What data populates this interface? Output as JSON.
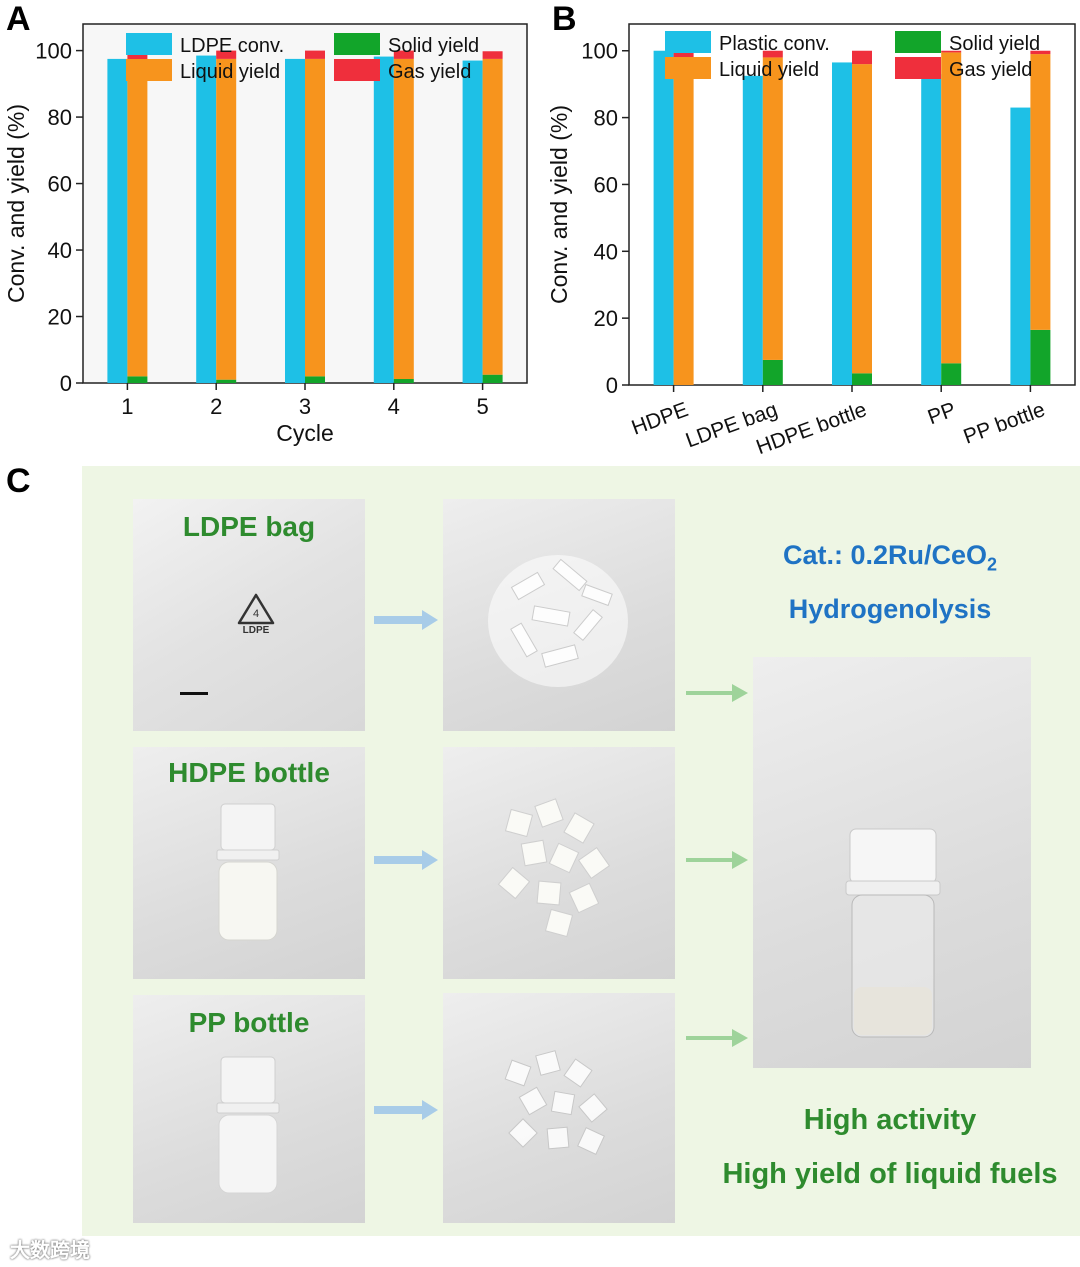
{
  "panels": {
    "a": "A",
    "b": "B",
    "c": "C"
  },
  "colors": {
    "conv": "#1ec0e6",
    "liquid": "#f7941d",
    "solid": "#12a52a",
    "gas": "#ef2f3c",
    "label_green": "#2e8b2e",
    "label_blue": "#1f73c4"
  },
  "chart_data": [
    {
      "type": "bar",
      "panel": "A",
      "xlabel": "Cycle",
      "ylabel": "Conv. and yield (%)",
      "ylim": [
        0,
        108
      ],
      "yticks": [
        0,
        20,
        40,
        60,
        80,
        100
      ],
      "categories": [
        "1",
        "2",
        "3",
        "4",
        "5"
      ],
      "legend_placement": "top",
      "series": [
        {
          "name": "LDPE conv.",
          "key": "conv",
          "values": [
            97.5,
            98.5,
            97.5,
            98.2,
            97.0
          ]
        },
        {
          "name": "Solid yield",
          "key": "solid",
          "values": [
            2.0,
            1.0,
            2.0,
            1.2,
            2.5
          ],
          "stack": "yield"
        },
        {
          "name": "Liquid yield",
          "key": "liquid",
          "values": [
            95.0,
            96.5,
            95.5,
            96.3,
            95.0
          ],
          "stack": "yield"
        },
        {
          "name": "Gas yield",
          "key": "gas",
          "values": [
            2.5,
            2.5,
            2.5,
            2.5,
            2.3
          ],
          "stack": "yield"
        }
      ]
    },
    {
      "type": "bar",
      "panel": "B",
      "ylabel": "Conv. and yield (%)",
      "ylim": [
        0,
        108
      ],
      "yticks": [
        0,
        20,
        40,
        60,
        80,
        100
      ],
      "categories": [
        "HDPE",
        "LDPE bag",
        "HDPE bottle",
        "PP",
        "PP bottle"
      ],
      "legend_placement": "top",
      "series": [
        {
          "name": "Plastic conv.",
          "key": "conv",
          "values": [
            100.0,
            92.5,
            96.5,
            93.0,
            83.0
          ]
        },
        {
          "name": "Solid yield",
          "key": "solid",
          "values": [
            0.0,
            7.5,
            3.5,
            6.5,
            16.5
          ],
          "stack": "yield"
        },
        {
          "name": "Liquid yield",
          "key": "liquid",
          "values": [
            92.5,
            90.5,
            92.5,
            93.0,
            82.5
          ],
          "stack": "yield"
        },
        {
          "name": "Gas yield",
          "key": "gas",
          "values": [
            7.5,
            2.0,
            4.0,
            0.5,
            1.0
          ],
          "stack": "yield"
        }
      ]
    }
  ],
  "panel_c": {
    "row1_label": "LDPE bag",
    "row2_label": "HDPE bottle",
    "row3_label": "PP bottle",
    "recycle_number": "4",
    "recycle_text": "LDPE",
    "catalyst_prefix": "Cat.: 0.2Ru/CeO",
    "catalyst_subscript": "2",
    "process": "Hydrogenolysis",
    "result_line1": "High activity",
    "result_line2": "High yield of liquid fuels"
  },
  "watermark": "大数跨境"
}
